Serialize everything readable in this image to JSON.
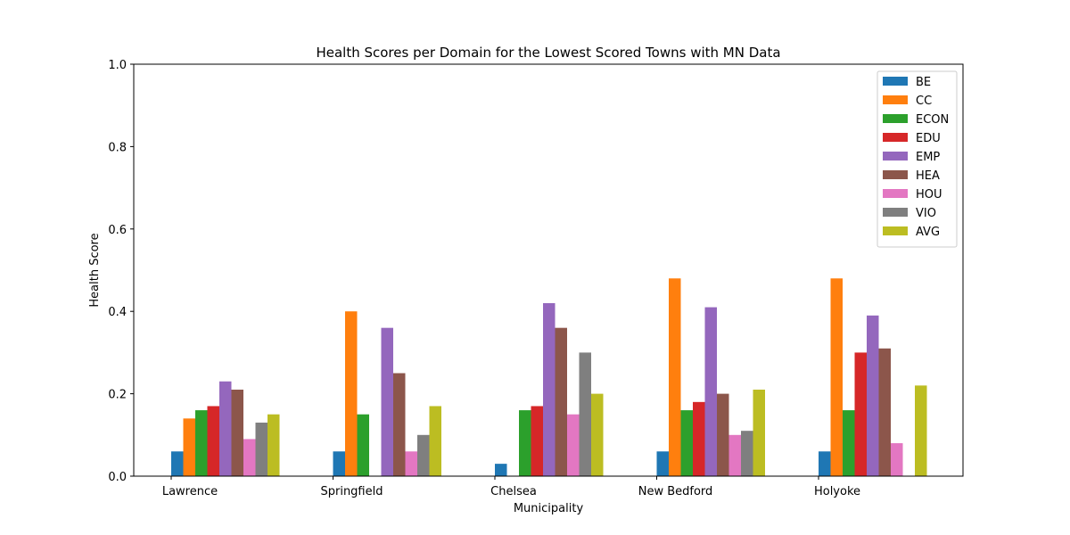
{
  "chart_data": {
    "type": "bar",
    "title": "Health Scores per Domain for the Lowest Scored Towns with MN Data",
    "xlabel": "Municipality",
    "ylabel": "Health Score",
    "ylim": [
      0,
      1.0
    ],
    "yticks": [
      "0.0",
      "0.2",
      "0.4",
      "0.6",
      "0.8",
      "1.0"
    ],
    "grid": false,
    "legend_position": "top-right",
    "categories": [
      "Lawrence",
      "Springfield",
      "Chelsea",
      "New Bedford",
      "Holyoke"
    ],
    "series": [
      {
        "name": "BE",
        "color": "#1f77b4",
        "values": [
          0.06,
          0.06,
          0.03,
          0.06,
          0.06
        ]
      },
      {
        "name": "CC",
        "color": "#ff7f0e",
        "values": [
          0.14,
          0.4,
          0.0,
          0.48,
          0.48
        ]
      },
      {
        "name": "ECON",
        "color": "#2ca02c",
        "values": [
          0.16,
          0.15,
          0.16,
          0.16,
          0.16
        ]
      },
      {
        "name": "EDU",
        "color": "#d62728",
        "values": [
          0.17,
          0.0,
          0.17,
          0.18,
          0.3
        ]
      },
      {
        "name": "EMP",
        "color": "#9467bd",
        "values": [
          0.23,
          0.36,
          0.42,
          0.41,
          0.39
        ]
      },
      {
        "name": "HEA",
        "color": "#8c564b",
        "values": [
          0.21,
          0.25,
          0.36,
          0.2,
          0.31
        ]
      },
      {
        "name": "HOU",
        "color": "#e377c2",
        "values": [
          0.09,
          0.06,
          0.15,
          0.1,
          0.08
        ]
      },
      {
        "name": "VIO",
        "color": "#7f7f7f",
        "values": [
          0.13,
          0.1,
          0.3,
          0.11,
          0.0
        ]
      },
      {
        "name": "AVG",
        "color": "#bcbd22",
        "values": [
          0.15,
          0.17,
          0.2,
          0.21,
          0.22
        ]
      }
    ]
  }
}
